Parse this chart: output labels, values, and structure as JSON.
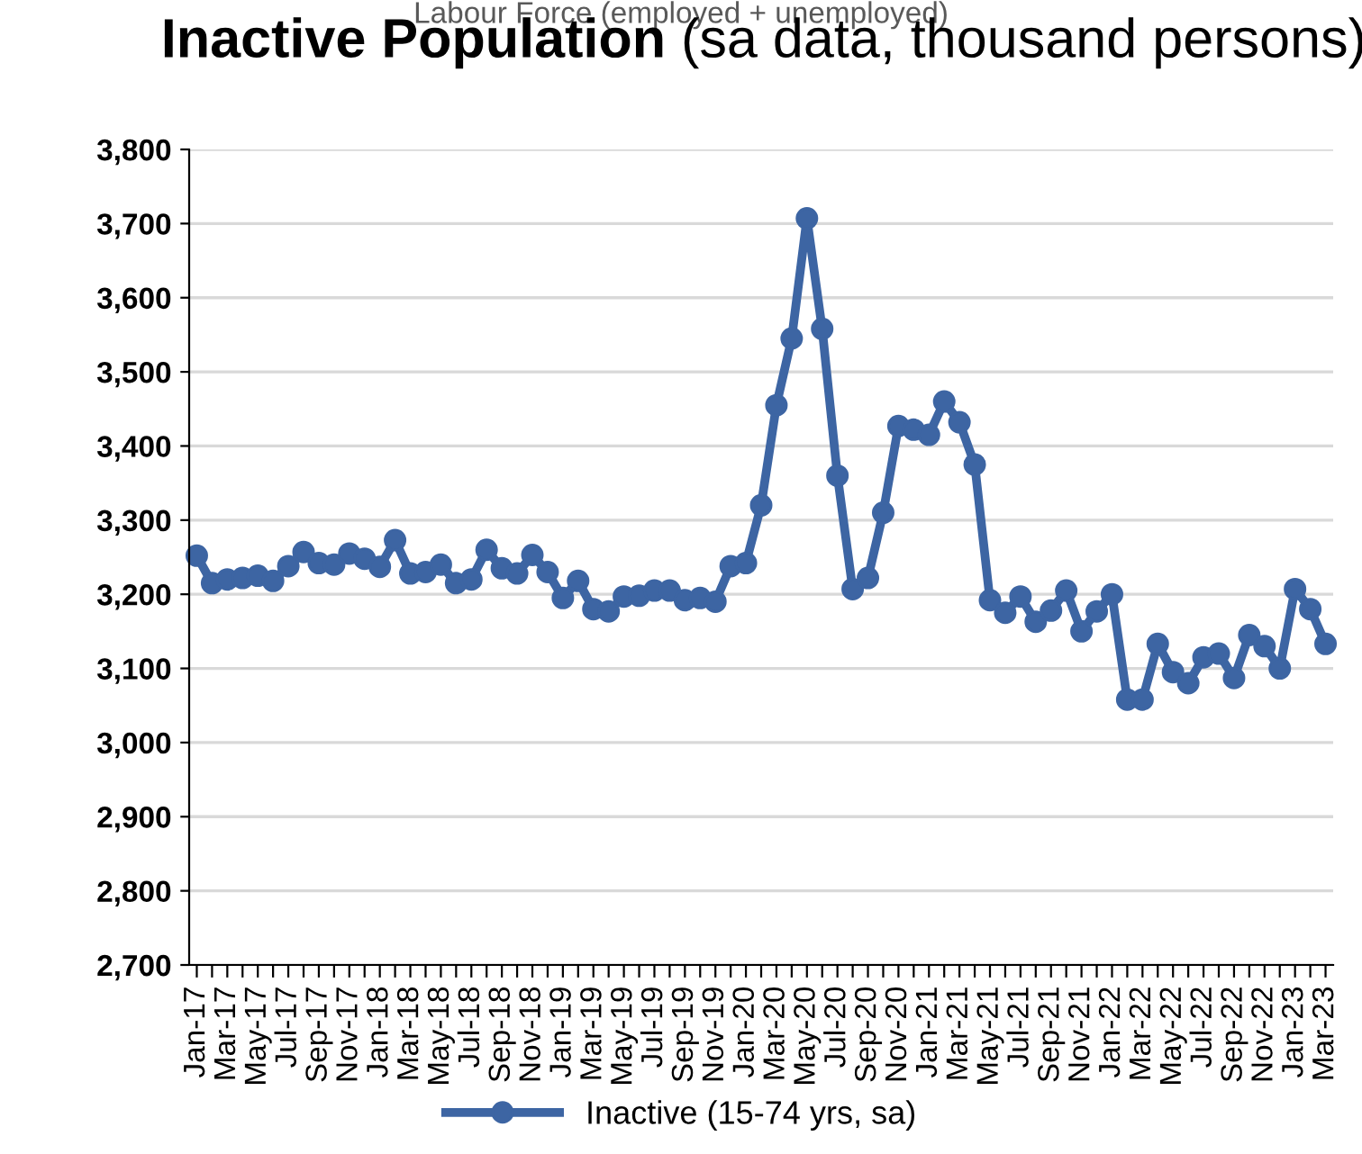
{
  "chart_data": {
    "type": "line",
    "title": "Inactive Population",
    "subtitle": "(sa data, thousand persons)",
    "categories": [
      "Jan-17",
      null,
      "Mar-17",
      null,
      "May-17",
      null,
      "Jul-17",
      null,
      "Sep-17",
      null,
      "Nov-17",
      null,
      "Jan-18",
      null,
      "Mar-18",
      null,
      "May-18",
      null,
      "Jul-18",
      null,
      "Sep-18",
      null,
      "Nov-18",
      null,
      "Jan-19",
      null,
      "Mar-19",
      null,
      "May-19",
      null,
      "Jul-19",
      null,
      "Sep-19",
      null,
      "Nov-19",
      null,
      "Jan-20",
      null,
      "Mar-20",
      null,
      "May-20",
      null,
      "Jul-20",
      null,
      "Sep-20",
      null,
      "Nov-20",
      null,
      "Jan-21",
      null,
      "Mar-21",
      null,
      "May-21",
      null,
      "Jul-21",
      null,
      "Sep-21",
      null,
      "Nov-21",
      null,
      "Jan-22",
      null,
      "Mar-22",
      null,
      "May-22",
      null,
      "Jul-22",
      null,
      "Sep-22",
      null,
      "Nov-22",
      null,
      "Jan-23",
      null,
      "Mar-23"
    ],
    "series": [
      {
        "name": "Inactive (15-74 yrs, sa)",
        "color": "#3d65a3",
        "values": [
          3252,
          3215,
          3220,
          3222,
          3225,
          3218,
          3238,
          3257,
          3242,
          3240,
          3255,
          3248,
          3237,
          3273,
          3228,
          3230,
          3240,
          3215,
          3220,
          3260,
          3235,
          3228,
          3253,
          3230,
          3195,
          3218,
          3180,
          3177,
          3197,
          3198,
          3205,
          3205,
          3192,
          3195,
          3190,
          3238,
          3242,
          3320,
          3455,
          3545,
          3707,
          3558,
          3360,
          3207,
          3222,
          3310,
          3427,
          3422,
          3415,
          3460,
          3432,
          3375,
          3192,
          3175,
          3197,
          3163,
          3178,
          3205,
          3150,
          3177,
          3200,
          3058,
          3058,
          3133,
          3095,
          3080,
          3115,
          3120,
          3087,
          3145,
          3130,
          3100,
          3207,
          3180,
          3133
        ]
      }
    ],
    "annotations": [
      "Labour Force (employed + unemployed)"
    ],
    "ylim": [
      2700,
      3800
    ],
    "yticks": [
      {
        "value": 2700,
        "label": "2,700"
      },
      {
        "value": 2800,
        "label": "2,800"
      },
      {
        "value": 2900,
        "label": "2,900"
      },
      {
        "value": 3000,
        "label": "3,000"
      },
      {
        "value": 3100,
        "label": "3,100"
      },
      {
        "value": 3200,
        "label": "3,200"
      },
      {
        "value": 3300,
        "label": "3,300"
      },
      {
        "value": 3400,
        "label": "3,400"
      },
      {
        "value": 3500,
        "label": "3,500"
      },
      {
        "value": 3600,
        "label": "3,600"
      },
      {
        "value": 3700,
        "label": "3,700"
      },
      {
        "value": 3800,
        "label": "3,800"
      }
    ],
    "grid": "y",
    "legend": "bottom",
    "marker": "circle",
    "line_style": "solid"
  }
}
